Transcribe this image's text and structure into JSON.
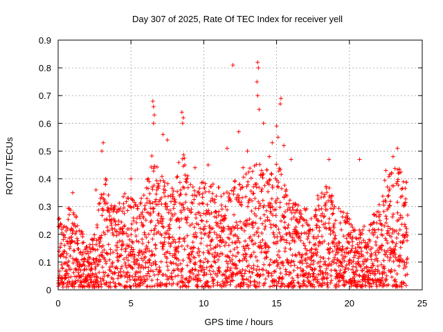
{
  "chart_data": {
    "type": "scatter",
    "title": "Day 307 of 2025, Rate Of TEC Index for receiver yell",
    "xlabel": "GPS time / hours",
    "ylabel": "ROTI / TECUs",
    "xlim": [
      0,
      25
    ],
    "ylim": [
      0,
      0.9
    ],
    "xticks": [
      0,
      5,
      10,
      15,
      20,
      25
    ],
    "yticks": [
      0,
      0.1,
      0.2,
      0.3,
      0.4,
      0.5,
      0.6,
      0.7,
      0.8,
      0.9
    ],
    "xtick_labels": [
      "0",
      "5",
      "10",
      "15",
      "20",
      "25"
    ],
    "ytick_labels": [
      "0",
      "0.1",
      "0.2",
      "0.3",
      "0.4",
      "0.5",
      "0.6",
      "0.7",
      "0.8",
      "0.9"
    ],
    "grid": true,
    "marker": "plus",
    "colors": {
      "series": "#ff0000",
      "grid": "#a0a0a0",
      "axis": "#000000"
    },
    "data_hours": [
      0,
      24
    ],
    "envelope": [
      [
        0.0,
        0.25
      ],
      [
        0.5,
        0.28
      ],
      [
        1.0,
        0.3
      ],
      [
        1.5,
        0.22
      ],
      [
        2.0,
        0.15
      ],
      [
        2.5,
        0.2
      ],
      [
        3.0,
        0.45
      ],
      [
        3.5,
        0.35
      ],
      [
        4.0,
        0.28
      ],
      [
        4.5,
        0.35
      ],
      [
        5.0,
        0.32
      ],
      [
        5.5,
        0.3
      ],
      [
        6.0,
        0.35
      ],
      [
        6.5,
        0.5
      ],
      [
        7.0,
        0.42
      ],
      [
        7.5,
        0.38
      ],
      [
        8.0,
        0.35
      ],
      [
        8.5,
        0.55
      ],
      [
        9.0,
        0.38
      ],
      [
        9.5,
        0.35
      ],
      [
        10.0,
        0.4
      ],
      [
        10.5,
        0.38
      ],
      [
        11.0,
        0.36
      ],
      [
        11.5,
        0.35
      ],
      [
        12.0,
        0.38
      ],
      [
        12.5,
        0.4
      ],
      [
        13.0,
        0.42
      ],
      [
        13.5,
        0.45
      ],
      [
        14.0,
        0.45
      ],
      [
        14.5,
        0.42
      ],
      [
        15.0,
        0.45
      ],
      [
        15.5,
        0.4
      ],
      [
        16.0,
        0.32
      ],
      [
        16.5,
        0.3
      ],
      [
        17.0,
        0.28
      ],
      [
        17.5,
        0.3
      ],
      [
        18.0,
        0.35
      ],
      [
        18.5,
        0.38
      ],
      [
        19.0,
        0.3
      ],
      [
        19.5,
        0.28
      ],
      [
        20.0,
        0.26
      ],
      [
        20.5,
        0.22
      ],
      [
        21.0,
        0.22
      ],
      [
        21.5,
        0.25
      ],
      [
        22.0,
        0.3
      ],
      [
        22.5,
        0.4
      ],
      [
        23.0,
        0.42
      ],
      [
        23.5,
        0.45
      ],
      [
        24.0,
        0.38
      ]
    ],
    "outliers": [
      [
        12.0,
        0.81
      ],
      [
        12.4,
        0.57
      ],
      [
        13.7,
        0.82
      ],
      [
        13.75,
        0.8
      ],
      [
        13.65,
        0.75
      ],
      [
        13.7,
        0.7
      ],
      [
        13.8,
        0.65
      ],
      [
        14.1,
        0.6
      ],
      [
        15.3,
        0.69
      ],
      [
        15.25,
        0.67
      ],
      [
        6.5,
        0.68
      ],
      [
        6.55,
        0.66
      ],
      [
        6.6,
        0.63
      ],
      [
        6.55,
        0.6
      ],
      [
        8.5,
        0.64
      ],
      [
        8.6,
        0.62
      ],
      [
        8.55,
        0.6
      ],
      [
        7.2,
        0.56
      ],
      [
        7.5,
        0.54
      ],
      [
        3.1,
        0.53
      ],
      [
        3.0,
        0.5
      ],
      [
        11.6,
        0.51
      ],
      [
        13.0,
        0.5
      ],
      [
        15.0,
        0.59
      ],
      [
        15.1,
        0.55
      ],
      [
        15.5,
        0.52
      ],
      [
        14.7,
        0.53
      ],
      [
        20.7,
        0.47
      ],
      [
        18.6,
        0.47
      ],
      [
        23.3,
        0.51
      ],
      [
        23.0,
        0.48
      ],
      [
        22.5,
        0.43
      ],
      [
        12.7,
        0.44
      ],
      [
        14.5,
        0.48
      ],
      [
        9.4,
        0.44
      ],
      [
        10.3,
        0.45
      ],
      [
        16.0,
        0.47
      ],
      [
        5.0,
        0.4
      ],
      [
        2.6,
        0.36
      ],
      [
        1.0,
        0.35
      ]
    ],
    "n_points": 2600,
    "seed": 307
  }
}
